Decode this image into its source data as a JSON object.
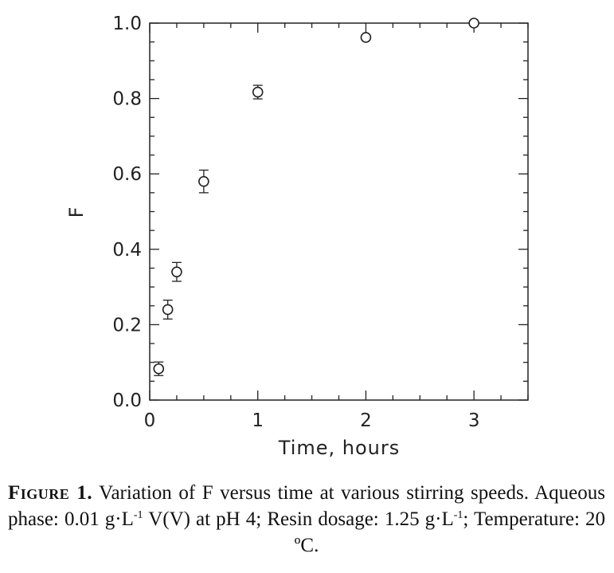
{
  "chart_data": {
    "type": "scatter",
    "xlabel": "Time, hours",
    "ylabel": "F",
    "xlim": [
      0,
      3.5
    ],
    "ylim": [
      0,
      1.0
    ],
    "xticks": [
      "0",
      "1",
      "2",
      "3"
    ],
    "yticks": [
      "0.0",
      "0.2",
      "0.4",
      "0.6",
      "0.8",
      "1.0"
    ],
    "grid": false,
    "points": [
      {
        "x": 0.083,
        "y": 0.083,
        "err": 0.018
      },
      {
        "x": 0.167,
        "y": 0.24,
        "err": 0.025
      },
      {
        "x": 0.25,
        "y": 0.34,
        "err": 0.025
      },
      {
        "x": 0.5,
        "y": 0.58,
        "err": 0.03
      },
      {
        "x": 1.0,
        "y": 0.817,
        "err": 0.018
      },
      {
        "x": 2.0,
        "y": 0.962,
        "err": 0
      },
      {
        "x": 3.0,
        "y": 1.0,
        "err": 0
      }
    ]
  },
  "caption": {
    "label": "Figure 1.",
    "text1": " Variation of F versus time at various stirring speeds. Aqueous phase: 0.01 g·L",
    "sup1": "-1",
    "text2": " V(V) at pH 4; Resin dosage: 1.25 g·L",
    "sup2": "-1",
    "text3": "; Temperature: 20 ºC."
  }
}
